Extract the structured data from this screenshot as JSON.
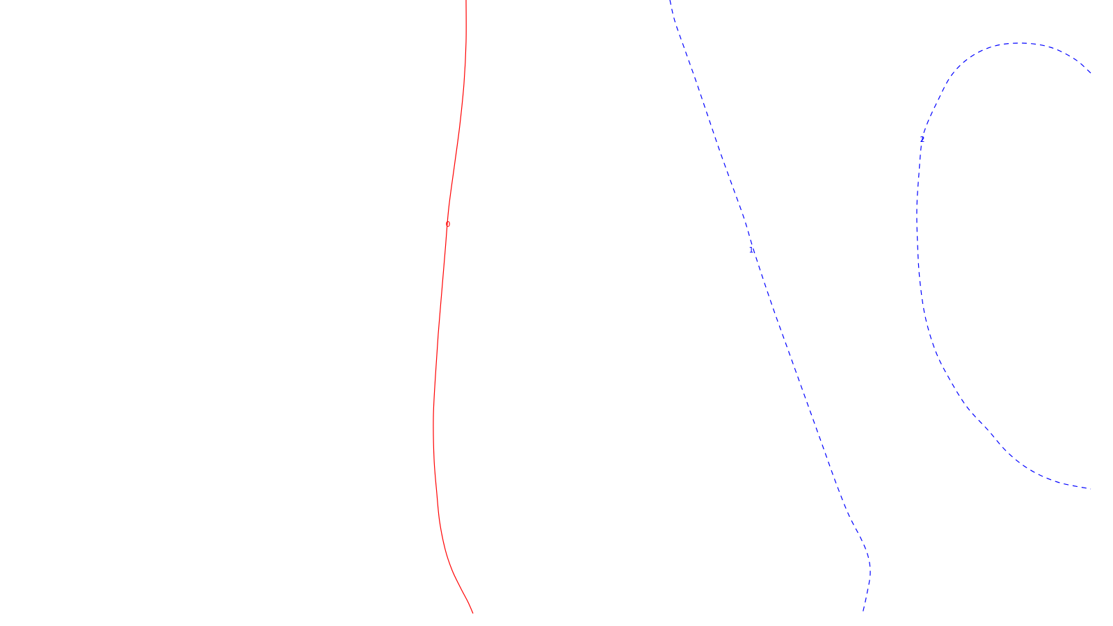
{
  "chart_data": {
    "type": "contour",
    "grid": false,
    "legend": "none",
    "contours": [
      {
        "label": "0",
        "color": "#ff0000",
        "style": "solid",
        "points": [
          [
            670,
            0
          ],
          [
            670,
            60
          ],
          [
            667,
            120
          ],
          [
            661,
            180
          ],
          [
            653,
            240
          ],
          [
            645,
            300
          ],
          [
            640,
            360
          ],
          [
            635,
            420
          ],
          [
            630,
            480
          ],
          [
            626,
            540
          ],
          [
            623,
            600
          ],
          [
            624,
            660
          ],
          [
            628,
            710
          ],
          [
            632,
            750
          ],
          [
            640,
            790
          ],
          [
            650,
            820
          ],
          [
            662,
            845
          ],
          [
            673,
            866
          ],
          [
            680,
            882
          ]
        ]
      },
      {
        "label": "1",
        "color": "#0000ff",
        "style": "dashed",
        "points": [
          [
            963,
            0
          ],
          [
            970,
            30
          ],
          [
            984,
            70
          ],
          [
            1000,
            115
          ],
          [
            1017,
            165
          ],
          [
            1034,
            215
          ],
          [
            1052,
            265
          ],
          [
            1070,
            315
          ],
          [
            1082,
            355
          ],
          [
            1095,
            395
          ],
          [
            1112,
            445
          ],
          [
            1130,
            495
          ],
          [
            1148,
            545
          ],
          [
            1166,
            595
          ],
          [
            1184,
            645
          ],
          [
            1202,
            695
          ],
          [
            1220,
            740
          ],
          [
            1238,
            775
          ],
          [
            1248,
            800
          ],
          [
            1251,
            825
          ],
          [
            1246,
            855
          ],
          [
            1240,
            882
          ]
        ]
      },
      {
        "label": "2",
        "color": "#0000ff",
        "style": "dashed",
        "points": [
          [
            1568,
            105
          ],
          [
            1545,
            85
          ],
          [
            1510,
            68
          ],
          [
            1470,
            62
          ],
          [
            1430,
            66
          ],
          [
            1395,
            82
          ],
          [
            1368,
            108
          ],
          [
            1348,
            145
          ],
          [
            1332,
            180
          ],
          [
            1325,
            205
          ],
          [
            1321,
            250
          ],
          [
            1318,
            300
          ],
          [
            1319,
            350
          ],
          [
            1322,
            400
          ],
          [
            1330,
            455
          ],
          [
            1345,
            505
          ],
          [
            1365,
            545
          ],
          [
            1390,
            585
          ],
          [
            1420,
            618
          ],
          [
            1448,
            650
          ],
          [
            1480,
            675
          ],
          [
            1520,
            693
          ],
          [
            1568,
            703
          ]
        ]
      }
    ]
  }
}
